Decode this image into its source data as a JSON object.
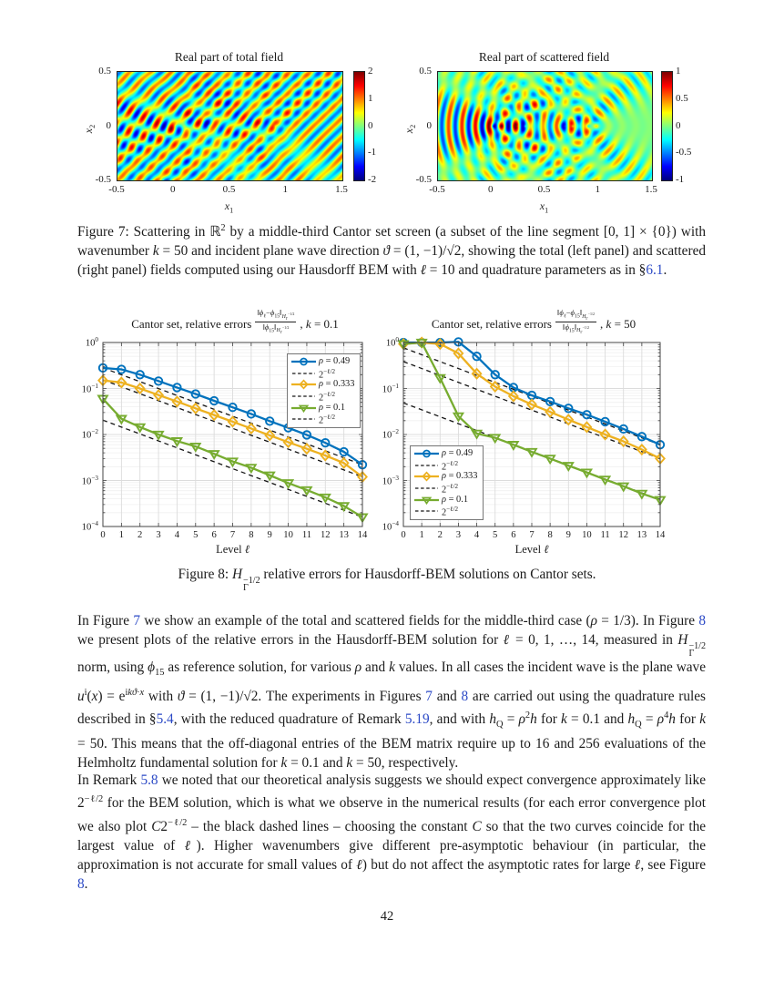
{
  "page_number": "42",
  "accent_colors": {
    "link_blue": "#2b49c6",
    "matlab_blue": "#0072BD",
    "matlab_orange": "#EDB120",
    "matlab_green": "#77AC30",
    "dashed_black": "#151515"
  },
  "fig7": {
    "wavenumber": 50,
    "panels": [
      {
        "title": "Real part of total field",
        "kind": "total",
        "xlabel_html": "<i>x</i><sub>1</sub>",
        "ylabel_html": "<i>x</i><sub>2</sub>",
        "x_ticks": [
          "-0.5",
          "0",
          "0.5",
          "1",
          "1.5"
        ],
        "y_ticks": [
          "0.5",
          "0",
          "-0.5"
        ],
        "colorbar_ticks": [
          "2",
          "1",
          "0",
          "-1",
          "-2"
        ],
        "clim": [
          -2,
          2
        ]
      },
      {
        "title": "Real part of scattered field",
        "kind": "scattered",
        "xlabel_html": "<i>x</i><sub>1</sub>",
        "ylabel_html": "<i>x</i><sub>2</sub>",
        "x_ticks": [
          "-0.5",
          "0",
          "0.5",
          "1",
          "1.5"
        ],
        "y_ticks": [
          "0.5",
          "0",
          "-0.5"
        ],
        "colorbar_ticks": [
          "1",
          "0.5",
          "0",
          "-0.5",
          "-1"
        ],
        "clim": [
          -1,
          1
        ]
      }
    ],
    "caption_html": "Figure 7: Scattering in ℝ<sup>2</sup> by a middle-third Cantor set screen (a subset of the line segment [0, 1] × {0}) with wavenumber <i>k</i> = 50 and incident plane wave direction <i>ϑ</i> = (1, −1)/√2, showing the total (left panel) and scattered (right panel) fields computed using our Hausdorff BEM with <i>ℓ</i> = 10 and quadrature parameters as in §<a class=\"ref\" data-name=\"ref-section-6-1\" data-interactable=\"true\">6.1</a>."
  },
  "fig8": {
    "caption_html": "Figure 8: <i>H</i><span class=\"ss\"><span>−1/2</span><span>Γ</span></span> relative errors for Hausdorff-BEM solutions on Cantor sets."
  },
  "chart_data": [
    {
      "type": "line",
      "title_prefix": "Cantor set, relative errors",
      "title_frac_num_html": "‖<i>ϕ</i><sub>ℓ</sub>−<i>ϕ</i><sub>15</sub>‖<sub><i>H</i><sub>Γ</sub><sup>−1/2</sup></sub>",
      "title_frac_den_html": "‖<i>ϕ</i><sub>15</sub>‖<sub><i>H</i><sub>Γ</sub><sup>−1/2</sup></sub>",
      "title_suffix_html": ", <i>k</i> = 0.1",
      "xlabel_html": "Level <i>ℓ</i>",
      "x": [
        0,
        1,
        2,
        3,
        4,
        5,
        6,
        7,
        8,
        9,
        10,
        11,
        12,
        13,
        14
      ],
      "x_ticks": [
        "0",
        "1",
        "2",
        "3",
        "4",
        "5",
        "6",
        "7",
        "8",
        "9",
        "10",
        "11",
        "12",
        "13",
        "14"
      ],
      "y_tick_exponents": [
        0,
        -1,
        -2,
        -3,
        -4
      ],
      "ylim": [
        0.0001,
        1
      ],
      "grid": true,
      "legend_position": "top-right",
      "series": [
        {
          "name_html": "<i>ρ</i> = 0.49",
          "color": "#0072BD",
          "marker": "circle",
          "dashed": false,
          "values": [
            0.28,
            0.26,
            0.2,
            0.145,
            0.105,
            0.076,
            0.054,
            0.039,
            0.028,
            0.0195,
            0.014,
            0.0098,
            0.0066,
            0.0042,
            0.0022
          ]
        },
        {
          "name_html": "2<sup>−ℓ/2</sup>",
          "color": "#151515",
          "marker": null,
          "dashed": true,
          "values": [
            0.282,
            0.199,
            0.141,
            0.0997,
            0.0705,
            0.0499,
            0.0353,
            0.0249,
            0.0176,
            0.0125,
            0.00881,
            0.00623,
            0.00441,
            0.00312,
            0.0022
          ]
        },
        {
          "name_html": "<i>ρ</i> = 0.333",
          "color": "#EDB120",
          "marker": "diamond",
          "dashed": false,
          "values": [
            0.15,
            0.135,
            0.1,
            0.072,
            0.052,
            0.037,
            0.0265,
            0.019,
            0.0135,
            0.0096,
            0.0068,
            0.0049,
            0.0035,
            0.0024,
            0.0012
          ]
        },
        {
          "name_html": "2<sup>−ℓ/2</sup>",
          "color": "#151515",
          "marker": null,
          "dashed": true,
          "values": [
            0.154,
            0.109,
            0.077,
            0.0544,
            0.0385,
            0.0272,
            0.0193,
            0.0136,
            0.00963,
            0.00681,
            0.00481,
            0.0034,
            0.00241,
            0.0017,
            0.0012
          ]
        },
        {
          "name_html": "<i>ρ</i> = 0.1",
          "color": "#77AC30",
          "marker": "triangle-down",
          "dashed": false,
          "values": [
            0.06,
            0.022,
            0.0145,
            0.01,
            0.0072,
            0.0055,
            0.0038,
            0.0026,
            0.0019,
            0.0013,
            0.00088,
            0.00062,
            0.00043,
            0.00028,
            0.00016
          ]
        },
        {
          "name_html": "2<sup>−ℓ/2</sup>",
          "color": "#151515",
          "marker": null,
          "dashed": true,
          "values": [
            0.0205,
            0.0145,
            0.0103,
            0.00725,
            0.00513,
            0.00362,
            0.00256,
            0.00181,
            0.00128,
            0.000906,
            0.000641,
            0.000453,
            0.00032,
            0.000227,
            0.00016
          ]
        }
      ]
    },
    {
      "type": "line",
      "title_prefix": "Cantor set, relative errors",
      "title_frac_num_html": "‖<i>ϕ</i><sub>ℓ</sub>−<i>ϕ</i><sub>15</sub>‖<sub><i>H</i><sub>Γ</sub><sup>−1/2</sup></sub>",
      "title_frac_den_html": "‖<i>ϕ</i><sub>15</sub>‖<sub><i>H</i><sub>Γ</sub><sup>−1/2</sup></sub>",
      "title_suffix_html": ", <i>k</i> = 50",
      "xlabel_html": "Level <i>ℓ</i>",
      "x": [
        0,
        1,
        2,
        3,
        4,
        5,
        6,
        7,
        8,
        9,
        10,
        11,
        12,
        13,
        14
      ],
      "x_ticks": [
        "0",
        "1",
        "2",
        "3",
        "4",
        "5",
        "6",
        "7",
        "8",
        "9",
        "10",
        "11",
        "12",
        "13",
        "14"
      ],
      "y_tick_exponents": [
        0,
        -1,
        -2,
        -3,
        -4
      ],
      "ylim": [
        0.0001,
        1
      ],
      "grid": true,
      "legend_position": "bottom-left",
      "series": [
        {
          "name_html": "<i>ρ</i> = 0.49",
          "color": "#0072BD",
          "marker": "circle",
          "dashed": false,
          "values": [
            1.0,
            1.0,
            1.0,
            1.03,
            0.5,
            0.2,
            0.105,
            0.071,
            0.052,
            0.037,
            0.027,
            0.019,
            0.0132,
            0.009,
            0.006
          ]
        },
        {
          "name_html": "2<sup>−ℓ/2</sup>",
          "color": "#151515",
          "marker": null,
          "dashed": true,
          "values": [
            0.768,
            0.543,
            0.384,
            0.272,
            0.192,
            0.136,
            0.096,
            0.0679,
            0.048,
            0.0339,
            0.024,
            0.017,
            0.012,
            0.00849,
            0.006
          ]
        },
        {
          "name_html": "<i>ρ</i> = 0.333",
          "color": "#EDB120",
          "marker": "diamond",
          "dashed": false,
          "values": [
            0.93,
            1.0,
            0.93,
            0.58,
            0.21,
            0.11,
            0.068,
            0.045,
            0.031,
            0.021,
            0.0145,
            0.01,
            0.0071,
            0.0047,
            0.003
          ]
        },
        {
          "name_html": "2<sup>−ℓ/2</sup>",
          "color": "#151515",
          "marker": null,
          "dashed": true,
          "values": [
            0.384,
            0.272,
            0.192,
            0.136,
            0.096,
            0.0679,
            0.048,
            0.0339,
            0.024,
            0.017,
            0.012,
            0.00849,
            0.006,
            0.00424,
            0.003
          ]
        },
        {
          "name_html": "<i>ρ</i> = 0.1",
          "color": "#77AC30",
          "marker": "triangle-down",
          "dashed": false,
          "values": [
            0.93,
            1.0,
            0.17,
            0.025,
            0.0105,
            0.0085,
            0.006,
            0.0042,
            0.003,
            0.0021,
            0.0015,
            0.00105,
            0.00075,
            0.00052,
            0.00038
          ]
        },
        {
          "name_html": "2<sup>−ℓ/2</sup>",
          "color": "#151515",
          "marker": null,
          "dashed": true,
          "values": [
            0.0486,
            0.0344,
            0.0243,
            0.0172,
            0.0122,
            0.00859,
            0.00608,
            0.0043,
            0.00304,
            0.00215,
            0.00152,
            0.00107,
            0.00076,
            0.000537,
            0.00038
          ]
        }
      ]
    }
  ],
  "paragraphs": [
    "In Figure <a class=\"ref\" data-name=\"ref-figure-7\" data-interactable=\"true\">7</a> we show an example of the total and scattered fields for the middle-third case (<i>ρ</i> = 1/3). In Figure <a class=\"ref\" data-name=\"ref-figure-8\" data-interactable=\"true\">8</a> we present plots of the relative errors in the Hausdorff-BEM solution for <i>ℓ</i> = 0, 1, …, 14, measured in <i>H</i><span class=\"ss\"><span>−1/2</span><span>Γ</span></span> norm, using <i>ϕ</i><sub>15</sub> as reference solution, for various <i>ρ</i> and <i>k</i> values. In all cases the incident wave is the plane wave <i>u</i><sup>i</sup>(<i>x</i>) = e<sup>i<i>kϑ</i>·<i>x</i></sup> with <i>ϑ</i> = (1, −1)/√2. The experiments in Figures <a class=\"ref\" data-name=\"ref-figure-7b\" data-interactable=\"true\">7</a> and <a class=\"ref\" data-name=\"ref-figure-8b\" data-interactable=\"true\">8</a> are carried out using the quadrature rules described in §<a class=\"ref\" data-name=\"ref-section-5-4\" data-interactable=\"true\">5.4</a>, with the reduced quadrature of Remark <a class=\"ref\" data-name=\"ref-remark-5-19\" data-interactable=\"true\">5.19</a>, and with <i>h</i><sub>Q</sub> = <i>ρ</i><sup>2</sup><i>h</i> for <i>k</i> = 0.1 and <i>h</i><sub>Q</sub> = <i>ρ</i><sup>4</sup><i>h</i> for <i>k</i> = 50. This means that the off-diagonal entries of the BEM matrix require up to 16 and 256 evaluations of the Helmholtz fundamental solution for <i>k</i> = 0.1 and <i>k</i> = 50, respectively.",
    "In Remark <a class=\"ref\" data-name=\"ref-remark-5-8\" data-interactable=\"true\">5.8</a> we noted that our theoretical analysis suggests we should expect convergence approximately like 2<sup>−ℓ/2</sup> for the BEM solution, which is what we observe in the numerical results (for each error convergence plot we also plot <i>C</i>2<sup>−ℓ/2</sup> – the black dashed lines – choosing the constant <i>C</i> so that the two curves coincide for the largest value of <i>ℓ</i>). Higher wavenumbers give different pre-asymptotic behaviour (in particular, the approximation is not accurate for small values of <i>ℓ</i>) but do not affect the asymptotic rates for large <i>ℓ</i>, see Figure <a class=\"ref\" data-name=\"ref-figure-8c\" data-interactable=\"true\">8</a>."
  ]
}
